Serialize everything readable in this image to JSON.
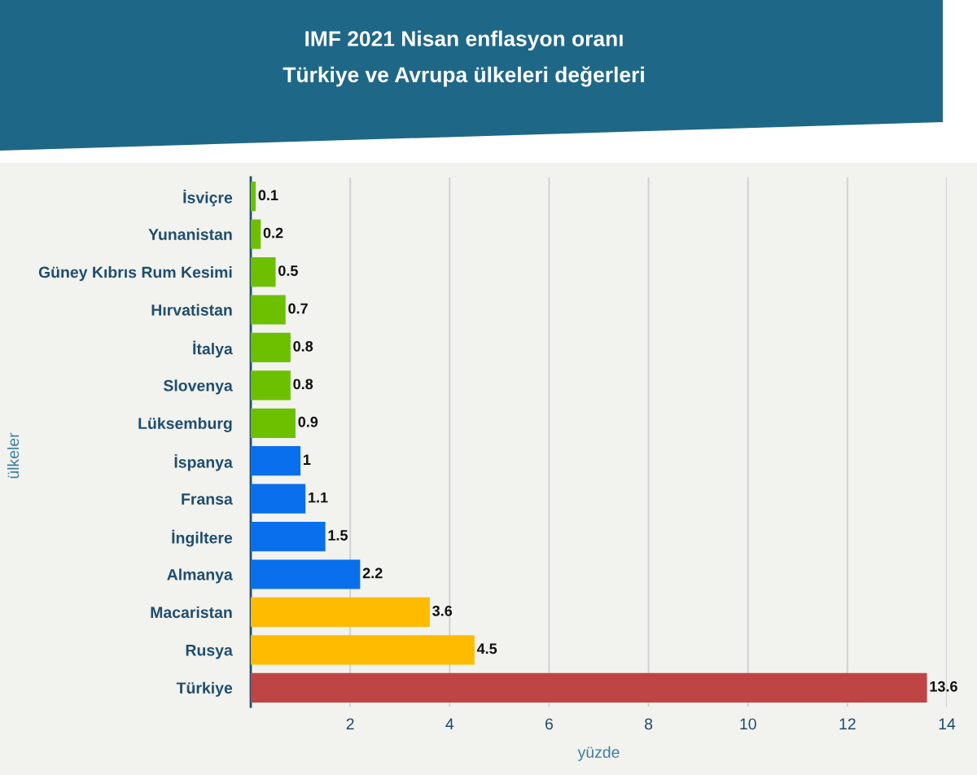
{
  "chart_data": {
    "type": "bar",
    "orientation": "horizontal",
    "title": "IMF 2021 Nisan enflasyon oranı\nTürkiye ve Avrupa ülkeleri değerleri",
    "xlabel": "yüzde",
    "ylabel": "ülkeler",
    "categories": [
      "İsviçre",
      "Yunanistan",
      "Güney Kıbrıs Rum Kesimi",
      "Hırvatistan",
      "İtalya",
      "Slovenya",
      "Lüksemburg",
      "İspanya",
      "Fransa",
      "İngiltere",
      "Almanya",
      "Macaristan",
      "Rusya",
      "Türkiye"
    ],
    "values": [
      0.1,
      0.2,
      0.5,
      0.7,
      0.8,
      0.8,
      0.9,
      1,
      1.1,
      1.5,
      2.2,
      3.6,
      4.5,
      13.6
    ],
    "colors": [
      "#6cc000",
      "#6cc000",
      "#6cc000",
      "#6cc000",
      "#6cc000",
      "#6cc000",
      "#6cc000",
      "#0a6fec",
      "#0a6fec",
      "#0a6fec",
      "#0a6fec",
      "#ffbb00",
      "#ffbb00",
      "#bf4444"
    ],
    "xlim": [
      0,
      14
    ],
    "xticks": [
      2,
      4,
      6,
      8,
      10,
      12,
      14
    ],
    "grid": "x",
    "data_labels": true
  }
}
